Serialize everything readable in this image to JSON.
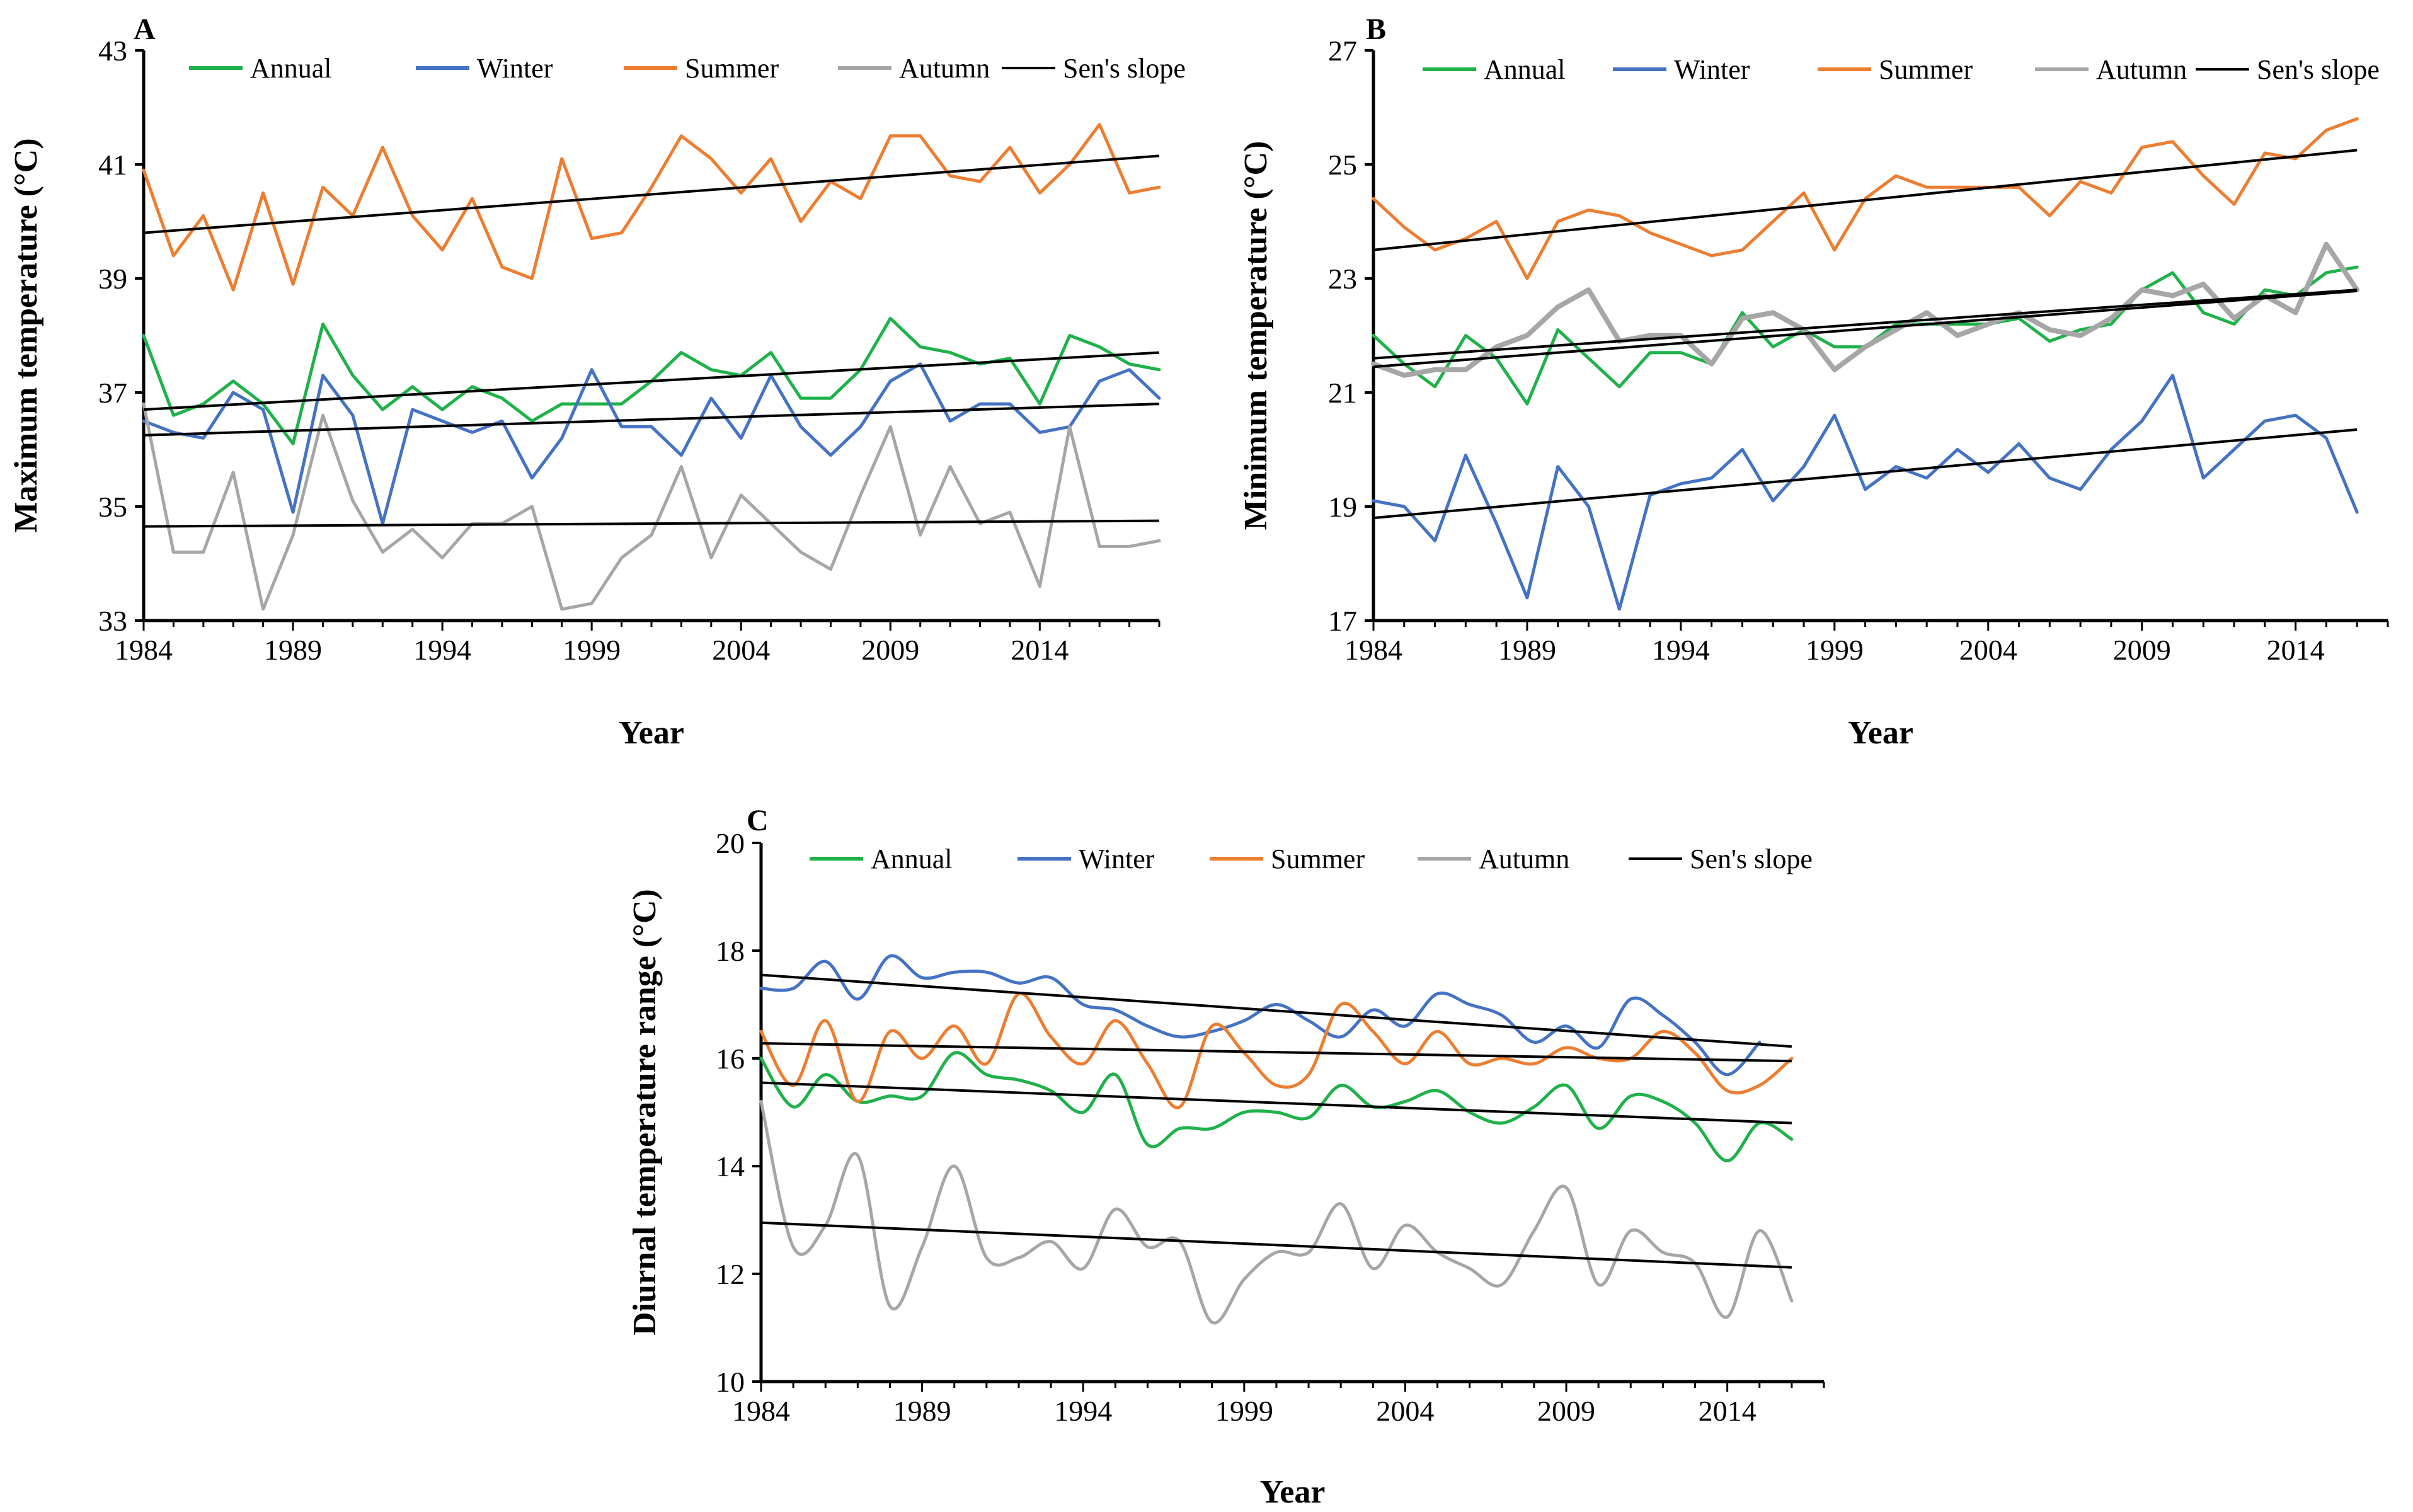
{
  "chart_data": [
    {
      "panel": "A",
      "type": "line",
      "xlabel": "Year",
      "ylabel": "Maximum temperature (°C)",
      "xlim": [
        1984,
        2018
      ],
      "ylim": [
        33,
        43
      ],
      "xticks": [
        1984,
        1989,
        1994,
        1999,
        2004,
        2009,
        2014
      ],
      "yticks": [
        33,
        35,
        37,
        39,
        41,
        43
      ],
      "smooth": false,
      "x": [
        1984,
        1985,
        1986,
        1987,
        1988,
        1989,
        1990,
        1991,
        1992,
        1993,
        1994,
        1995,
        1996,
        1997,
        1998,
        1999,
        2000,
        2001,
        2002,
        2003,
        2004,
        2005,
        2006,
        2007,
        2008,
        2009,
        2010,
        2011,
        2012,
        2013,
        2014,
        2015,
        2016,
        2017,
        2018
      ],
      "legend": [
        "Annual",
        "Winter",
        "Summer",
        "Autumn",
        "Sen's slope"
      ],
      "series": [
        {
          "name": "Annual",
          "color": "#1fb14a",
          "values": [
            38.0,
            36.6,
            36.8,
            37.2,
            36.8,
            36.1,
            38.2,
            37.3,
            36.7,
            37.1,
            36.7,
            37.1,
            36.9,
            36.5,
            36.8,
            36.8,
            36.8,
            37.2,
            37.7,
            37.4,
            37.3,
            37.7,
            36.9,
            36.9,
            37.4,
            38.3,
            37.8,
            37.7,
            37.5,
            37.6,
            36.8,
            38.0,
            37.8,
            37.5,
            37.4
          ]
        },
        {
          "name": "Winter",
          "color": "#4472c4",
          "values": [
            36.5,
            36.3,
            36.2,
            37.0,
            36.7,
            34.9,
            37.3,
            36.6,
            34.7,
            36.7,
            36.5,
            36.3,
            36.5,
            35.5,
            36.2,
            37.4,
            36.4,
            36.4,
            35.9,
            36.9,
            36.2,
            37.3,
            36.4,
            35.9,
            36.4,
            37.2,
            37.5,
            36.5,
            36.8,
            36.8,
            36.3,
            36.4,
            37.2,
            37.4,
            36.9
          ]
        },
        {
          "name": "Summer",
          "color": "#ed7d31",
          "values": [
            40.9,
            39.4,
            40.1,
            38.8,
            40.5,
            38.9,
            40.6,
            40.1,
            41.3,
            40.1,
            39.5,
            40.4,
            39.2,
            39.0,
            41.1,
            39.7,
            39.8,
            40.6,
            41.5,
            41.1,
            40.5,
            41.1,
            40.0,
            40.7,
            40.4,
            41.5,
            41.5,
            40.8,
            40.7,
            41.3,
            40.5,
            41.0,
            41.7,
            40.5,
            40.6
          ]
        },
        {
          "name": "Autumn",
          "color": "#a6a6a6",
          "values": [
            36.8,
            34.2,
            34.2,
            35.6,
            33.2,
            34.5,
            36.6,
            35.1,
            34.2,
            34.6,
            34.1,
            34.7,
            34.7,
            35.0,
            33.2,
            33.3,
            34.1,
            34.5,
            35.7,
            34.1,
            35.2,
            34.7,
            34.2,
            33.9,
            35.2,
            36.4,
            34.5,
            35.7,
            34.7,
            34.9,
            33.6,
            36.4,
            34.3,
            34.3,
            34.4
          ]
        }
      ],
      "trend_lines": [
        {
          "name": "Sen's slope",
          "of": "Summer",
          "x": [
            1984,
            2018
          ],
          "values": [
            39.8,
            41.15
          ]
        },
        {
          "name": "Sen's slope",
          "of": "Annual",
          "x": [
            1984,
            2018
          ],
          "values": [
            36.7,
            37.7
          ]
        },
        {
          "name": "Sen's slope",
          "of": "Winter",
          "x": [
            1984,
            2018
          ],
          "values": [
            36.25,
            36.8
          ]
        },
        {
          "name": "Sen's slope",
          "of": "Autumn",
          "x": [
            1984,
            2018
          ],
          "values": [
            34.65,
            34.75
          ]
        }
      ]
    },
    {
      "panel": "B",
      "type": "line",
      "xlabel": "Year",
      "ylabel": "Minimum temperature (°C)",
      "xlim": [
        1984,
        2017
      ],
      "ylim": [
        17,
        27
      ],
      "xticks": [
        1984,
        1989,
        1994,
        1999,
        2004,
        2009,
        2014
      ],
      "yticks": [
        17,
        19,
        21,
        23,
        25,
        27
      ],
      "smooth": false,
      "x": [
        1984,
        1985,
        1986,
        1987,
        1988,
        1989,
        1990,
        1991,
        1992,
        1993,
        1994,
        1995,
        1996,
        1997,
        1998,
        1999,
        2000,
        2001,
        2002,
        2003,
        2004,
        2005,
        2006,
        2007,
        2008,
        2009,
        2010,
        2011,
        2012,
        2013,
        2014,
        2015,
        2016
      ],
      "legend": [
        "Annual",
        "Winter",
        "Summer",
        "Autumn",
        "Sen's slope"
      ],
      "series": [
        {
          "name": "Annual",
          "color": "#1fb14a",
          "values": [
            22.0,
            21.5,
            21.1,
            22.0,
            21.6,
            20.8,
            22.1,
            21.6,
            21.1,
            21.7,
            21.7,
            21.5,
            22.4,
            21.8,
            22.1,
            21.8,
            21.8,
            22.2,
            22.2,
            22.2,
            22.2,
            22.3,
            21.9,
            22.1,
            22.2,
            22.8,
            23.1,
            22.4,
            22.2,
            22.8,
            22.7,
            23.1,
            23.2
          ]
        },
        {
          "name": "Winter",
          "color": "#4472c4",
          "values": [
            19.1,
            19.0,
            18.4,
            19.9,
            18.7,
            17.4,
            19.7,
            19.0,
            17.2,
            19.2,
            19.4,
            19.5,
            20.0,
            19.1,
            19.7,
            20.6,
            19.3,
            19.7,
            19.5,
            20.0,
            19.6,
            20.1,
            19.5,
            19.3,
            20.0,
            20.5,
            21.3,
            19.5,
            20.0,
            20.5,
            20.6,
            20.2,
            18.9
          ]
        },
        {
          "name": "Summer",
          "color": "#ed7d31",
          "values": [
            24.4,
            23.9,
            23.5,
            23.7,
            24.0,
            23.0,
            24.0,
            24.2,
            24.1,
            23.8,
            23.6,
            23.4,
            23.5,
            24.0,
            24.5,
            23.5,
            24.4,
            24.8,
            24.6,
            24.6,
            24.6,
            24.6,
            24.1,
            24.7,
            24.5,
            25.3,
            25.4,
            24.8,
            24.3,
            25.2,
            25.1,
            25.6,
            25.8
          ]
        },
        {
          "name": "Autumn",
          "color": "#a6a6a6",
          "values": [
            21.5,
            21.3,
            21.4,
            21.4,
            21.8,
            22.0,
            22.5,
            22.8,
            21.9,
            22.0,
            22.0,
            21.5,
            22.3,
            22.4,
            22.1,
            21.4,
            21.8,
            22.1,
            22.4,
            22.0,
            22.2,
            22.4,
            22.1,
            22.0,
            22.3,
            22.8,
            22.7,
            22.9,
            22.3,
            22.7,
            22.4,
            23.6,
            22.8
          ]
        }
      ],
      "trend_lines": [
        {
          "name": "Sen's slope",
          "of": "Summer",
          "x": [
            1984,
            2016
          ],
          "values": [
            23.5,
            25.25
          ]
        },
        {
          "name": "Sen's slope",
          "of": "Annual",
          "x": [
            1984,
            2016
          ],
          "values": [
            21.6,
            22.8
          ]
        },
        {
          "name": "Sen's slope",
          "of": "Autumn",
          "x": [
            1984,
            2016
          ],
          "values": [
            21.45,
            22.78
          ]
        },
        {
          "name": "Sen's slope",
          "of": "Winter",
          "x": [
            1984,
            2016
          ],
          "values": [
            18.8,
            20.35
          ]
        }
      ]
    },
    {
      "panel": "C",
      "type": "line",
      "xlabel": "Year",
      "ylabel": "Diurnal temperature range (°C)",
      "xlim": [
        1984,
        2017
      ],
      "ylim": [
        10,
        20
      ],
      "xticks": [
        1984,
        1989,
        1994,
        1999,
        2004,
        2009,
        2014
      ],
      "yticks": [
        10,
        12,
        14,
        16,
        18,
        20
      ],
      "smooth": true,
      "x": [
        1984,
        1985,
        1986,
        1987,
        1988,
        1989,
        1990,
        1991,
        1992,
        1993,
        1994,
        1995,
        1996,
        1997,
        1998,
        1999,
        2000,
        2001,
        2002,
        2003,
        2004,
        2005,
        2006,
        2007,
        2008,
        2009,
        2010,
        2011,
        2012,
        2013,
        2014,
        2015,
        2016
      ],
      "legend": [
        "Annual",
        "Winter",
        "Summer",
        "Autumn",
        "Sen's slope"
      ],
      "series": [
        {
          "name": "Annual",
          "color": "#1fb14a",
          "values": [
            16.0,
            15.1,
            15.7,
            15.2,
            15.3,
            15.3,
            16.1,
            15.7,
            15.6,
            15.4,
            15.0,
            15.7,
            14.4,
            14.7,
            14.7,
            15.0,
            15.0,
            14.9,
            15.5,
            15.1,
            15.2,
            15.4,
            15.0,
            14.8,
            15.1,
            15.5,
            14.7,
            15.3,
            15.2,
            14.8,
            14.1,
            14.8,
            14.5
          ]
        },
        {
          "name": "Winter",
          "color": "#4472c4",
          "values": [
            17.3,
            17.3,
            17.8,
            17.1,
            17.9,
            17.5,
            17.6,
            17.6,
            17.4,
            17.5,
            17.0,
            16.9,
            16.6,
            16.4,
            16.5,
            16.7,
            17.0,
            16.7,
            16.4,
            16.9,
            16.6,
            17.2,
            17.0,
            16.8,
            16.3,
            16.6,
            16.2,
            17.1,
            16.8,
            16.3,
            15.7,
            16.3,
            null
          ]
        },
        {
          "name": "Summer",
          "color": "#ed7d31",
          "values": [
            16.5,
            15.5,
            16.7,
            15.2,
            16.5,
            16.0,
            16.6,
            15.9,
            17.2,
            16.4,
            15.9,
            16.7,
            15.9,
            15.1,
            16.6,
            16.1,
            15.5,
            15.7,
            17.0,
            16.5,
            15.9,
            16.5,
            15.9,
            16.0,
            15.9,
            16.2,
            16.0,
            16.0,
            16.5,
            16.1,
            15.4,
            15.5,
            16.0
          ]
        },
        {
          "name": "Autumn",
          "color": "#a6a6a6",
          "values": [
            15.2,
            12.5,
            12.9,
            14.2,
            11.4,
            12.5,
            14.0,
            12.3,
            12.3,
            12.6,
            12.1,
            13.2,
            12.5,
            12.6,
            11.1,
            11.9,
            12.4,
            12.4,
            13.3,
            12.1,
            12.9,
            12.4,
            12.1,
            11.8,
            12.8,
            13.6,
            11.8,
            12.8,
            12.4,
            12.2,
            11.2,
            12.8,
            11.5
          ]
        }
      ],
      "trend_lines": [
        {
          "name": "Sen's slope",
          "of": "Winter",
          "x": [
            1984,
            2016
          ],
          "values": [
            17.55,
            16.22
          ]
        },
        {
          "name": "Sen's slope",
          "of": "Summer",
          "x": [
            1984,
            2016
          ],
          "values": [
            16.28,
            15.95
          ]
        },
        {
          "name": "Sen's slope",
          "of": "Annual",
          "x": [
            1984,
            2016
          ],
          "values": [
            15.55,
            14.8
          ]
        },
        {
          "name": "Sen's slope",
          "of": "Autumn",
          "x": [
            1984,
            2016
          ],
          "values": [
            12.95,
            12.12
          ]
        }
      ]
    }
  ]
}
